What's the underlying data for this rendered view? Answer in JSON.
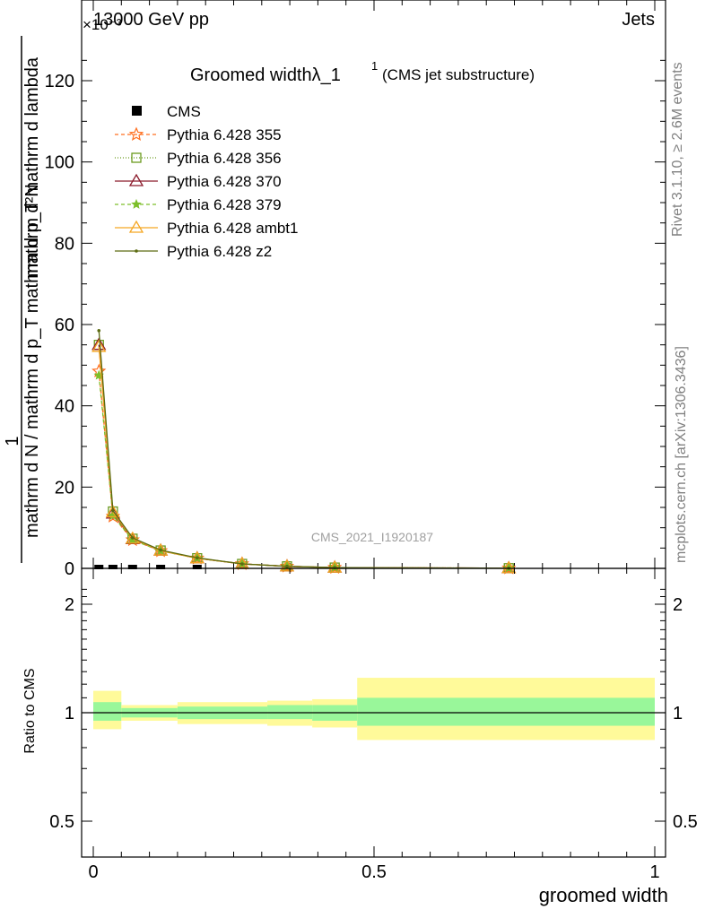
{
  "header": {
    "left": "13000 GeV pp",
    "right": "Jets",
    "exponent": "×10⁻³"
  },
  "side": {
    "rivet": "Rivet 3.1.10, ≥ 2.6M events",
    "site": "mcplots.cern.ch [arXiv:1306.3436]"
  },
  "chart_data": {
    "type": "line",
    "title": "Groomed widthλ_1",
    "title_sup": "1",
    "title_note": "(CMS jet substructure)",
    "watermark": "CMS_2021_I1920187",
    "ylabel_top": "mathrm d²N",
    "ylabel_bottom": "mathrm d N / mathrm d p_T mathrm d p_T mathrm d lambda",
    "ylabel_one": "1",
    "ratio_ylabel": "Ratio to CMS",
    "xlabel": "groomed width",
    "xlim": [
      0,
      1
    ],
    "ylim": [
      0,
      130
    ],
    "ratio_ylim": [
      0.4,
      2.3
    ],
    "xticks": [
      "0",
      "0.5",
      "1"
    ],
    "yticks": [
      "0",
      "20",
      "40",
      "60",
      "80",
      "100",
      "120"
    ],
    "ratio_yticks": [
      "0.5",
      "1",
      "2"
    ],
    "x": [
      0.01,
      0.035,
      0.07,
      0.12,
      0.185,
      0.265,
      0.345,
      0.43,
      0.74
    ],
    "cms": [
      0.05,
      0.05,
      0.05,
      0.05,
      0.05,
      0.02,
      0.01,
      0.005,
      0.001
    ],
    "series": [
      {
        "name": "Pythia 6.428 355",
        "color": "#ff6f20",
        "dash": "4,3",
        "marker": "star",
        "values": [
          48.5,
          12.8,
          7.0,
          4.3,
          2.5,
          1.1,
          0.5,
          0.2,
          0.05
        ]
      },
      {
        "name": "Pythia 6.428 356",
        "color": "#6b9a1e",
        "dash": "1,2",
        "marker": "square",
        "values": [
          55.0,
          14.0,
          7.3,
          4.4,
          2.5,
          1.1,
          0.5,
          0.2,
          0.05
        ]
      },
      {
        "name": "Pythia 6.428 370",
        "color": "#8b1a2b",
        "dash": "",
        "marker": "triangle",
        "values": [
          55.0,
          13.5,
          7.2,
          4.4,
          2.5,
          1.1,
          0.5,
          0.2,
          0.05
        ]
      },
      {
        "name": "Pythia 6.428 379",
        "color": "#7dbf2a",
        "dash": "4,3",
        "marker": "smallstar",
        "values": [
          47.5,
          13.0,
          7.0,
          4.3,
          2.5,
          1.1,
          0.5,
          0.2,
          0.05
        ]
      },
      {
        "name": "Pythia 6.428 ambt1",
        "color": "#f5a623",
        "dash": "",
        "marker": "triangle",
        "values": [
          54.5,
          13.8,
          7.3,
          4.4,
          2.5,
          1.1,
          0.5,
          0.2,
          0.05
        ]
      },
      {
        "name": "Pythia 6.428 z2",
        "color": "#5c6b12",
        "dash": "",
        "marker": "dot",
        "values": [
          58.5,
          14.2,
          7.5,
          4.5,
          2.6,
          1.1,
          0.5,
          0.2,
          0.05
        ]
      }
    ],
    "ratio_bands": [
      {
        "x0": 0.0,
        "x1": 0.05,
        "inner": [
          0.95,
          1.07
        ],
        "outer": [
          0.9,
          1.15
        ]
      },
      {
        "x0": 0.05,
        "x1": 0.15,
        "inner": [
          0.97,
          1.03
        ],
        "outer": [
          0.95,
          1.05
        ]
      },
      {
        "x0": 0.15,
        "x1": 0.31,
        "inner": [
          0.96,
          1.04
        ],
        "outer": [
          0.93,
          1.07
        ]
      },
      {
        "x0": 0.31,
        "x1": 0.39,
        "inner": [
          0.96,
          1.05
        ],
        "outer": [
          0.92,
          1.08
        ]
      },
      {
        "x0": 0.39,
        "x1": 0.47,
        "inner": [
          0.95,
          1.05
        ],
        "outer": [
          0.91,
          1.09
        ]
      },
      {
        "x0": 0.47,
        "x1": 1.0,
        "inner": [
          0.92,
          1.1
        ],
        "outer": [
          0.84,
          1.25
        ]
      }
    ],
    "colors": {
      "inner_band": "#99f79a",
      "outer_band": "#fffa9a"
    }
  }
}
